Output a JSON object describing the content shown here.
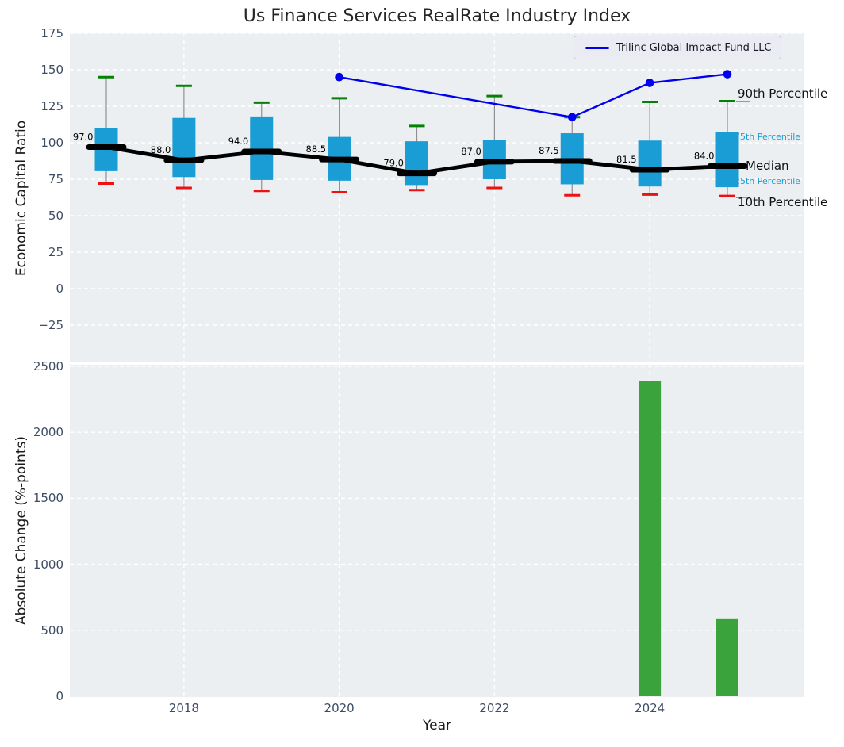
{
  "title": "Us Finance Services RealRate Industry Index",
  "legend": {
    "label": "Trilinc Global Impact Fund LLC"
  },
  "annotations": {
    "p90": "90th Percentile",
    "p75": "75th Percentile",
    "median": "Median",
    "p25": "25th Percentile",
    "p10": "10th Percentile"
  },
  "colors": {
    "plot_background": "#ECEFF1",
    "grid": "#ffffff",
    "box_fill": "#1A9CD4",
    "median_line": "#000000",
    "whisker": "#909090",
    "cap_top": "#058205",
    "cap_bottom": "#EE1111",
    "fund_line": "#0000EE",
    "bar_fill": "#3BA33B",
    "tick_text": "#3E4D63",
    "percentile_label_accent": "#1A9CD4"
  },
  "chart_data": [
    {
      "type": "boxplot",
      "panel": "top",
      "ylabel": "Economic Capital Ratio",
      "ylim": [
        -51,
        175.5
      ],
      "yticks": [
        175,
        150,
        125,
        100,
        75,
        50,
        25,
        0,
        -25
      ],
      "grid": true,
      "grid_xticks": [
        2018,
        2020,
        2022,
        2024
      ],
      "categories": [
        2017,
        2018,
        2019,
        2020,
        2021,
        2022,
        2023,
        2024,
        2025
      ],
      "boxes": [
        {
          "year": 2017,
          "p10": 72,
          "p25": 80.5,
          "median": 97.0,
          "p75": 110,
          "p90": 145,
          "median_label": "97.0"
        },
        {
          "year": 2018,
          "p10": 69,
          "p25": 76.5,
          "median": 88.0,
          "p75": 117,
          "p90": 139,
          "median_label": "88.0"
        },
        {
          "year": 2019,
          "p10": 67,
          "p25": 74.5,
          "median": 94.0,
          "p75": 118,
          "p90": 127.5,
          "median_label": "94.0"
        },
        {
          "year": 2020,
          "p10": 66,
          "p25": 74,
          "median": 88.5,
          "p75": 104,
          "p90": 130.5,
          "median_label": "88.5"
        },
        {
          "year": 2021,
          "p10": 67.5,
          "p25": 71,
          "median": 79.0,
          "p75": 101,
          "p90": 111.5,
          "median_label": "79.0"
        },
        {
          "year": 2022,
          "p10": 69,
          "p25": 75,
          "median": 87.0,
          "p75": 102,
          "p90": 132,
          "median_label": "87.0"
        },
        {
          "year": 2023,
          "p10": 64,
          "p25": 71.5,
          "median": 87.5,
          "p75": 106.5,
          "p90": 117.5,
          "median_label": "87.5"
        },
        {
          "year": 2024,
          "p10": 64.5,
          "p25": 70,
          "median": 81.5,
          "p75": 101.5,
          "p90": 128,
          "median_label": "81.5"
        },
        {
          "year": 2025,
          "p10": 63.5,
          "p25": 69.5,
          "median": 84.0,
          "p75": 107.5,
          "p90": 128.5,
          "median_label": "84.0"
        }
      ],
      "series": [
        {
          "name": "Trilinc Global Impact Fund LLC",
          "x": [
            2020,
            2023,
            2024,
            2025
          ],
          "y": [
            145,
            117.5,
            141,
            147
          ],
          "color": "#0000EE",
          "marker": "circle"
        }
      ],
      "legend_position": "upper right"
    },
    {
      "type": "bar",
      "panel": "bottom",
      "ylabel": "Absolute Change (%-points)",
      "xlabel": "Year",
      "ylim": [
        0,
        2518
      ],
      "yticks": [
        2500,
        2000,
        1500,
        1000,
        500,
        0
      ],
      "xticks": [
        2018,
        2020,
        2022,
        2024
      ],
      "grid": true,
      "categories": [
        2024,
        2025
      ],
      "values": [
        2390,
        590
      ]
    }
  ]
}
